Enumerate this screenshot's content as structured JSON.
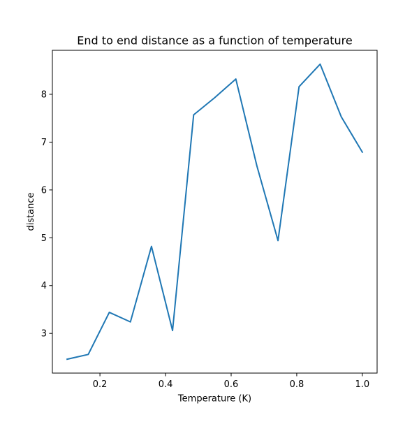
{
  "chart_data": {
    "type": "line",
    "title": "End to end distance as a function of temperature",
    "xlabel": "Temperature (K)",
    "ylabel": "distance",
    "xlim": [
      0.055,
      1.045
    ],
    "ylim": [
      2.17,
      8.92
    ],
    "xticks": [
      0.2,
      0.4,
      0.6,
      0.8,
      1.0
    ],
    "xtick_labels": [
      "0.2",
      "0.4",
      "0.6",
      "0.8",
      "1.0"
    ],
    "yticks": [
      3,
      4,
      5,
      6,
      7,
      8
    ],
    "ytick_labels": [
      "3",
      "4",
      "5",
      "6",
      "7",
      "8"
    ],
    "grid": false,
    "series": [
      {
        "color": "#1f77b4",
        "x": [
          0.1,
          0.1643,
          0.2286,
          0.2929,
          0.3571,
          0.4214,
          0.4857,
          0.55,
          0.6143,
          0.6786,
          0.7429,
          0.8071,
          0.8714,
          0.9357,
          1.0
        ],
        "y": [
          2.46,
          2.56,
          3.44,
          3.24,
          4.82,
          3.06,
          7.57,
          7.93,
          8.32,
          6.5,
          4.94,
          8.16,
          8.63,
          7.53,
          6.79
        ]
      }
    ]
  }
}
